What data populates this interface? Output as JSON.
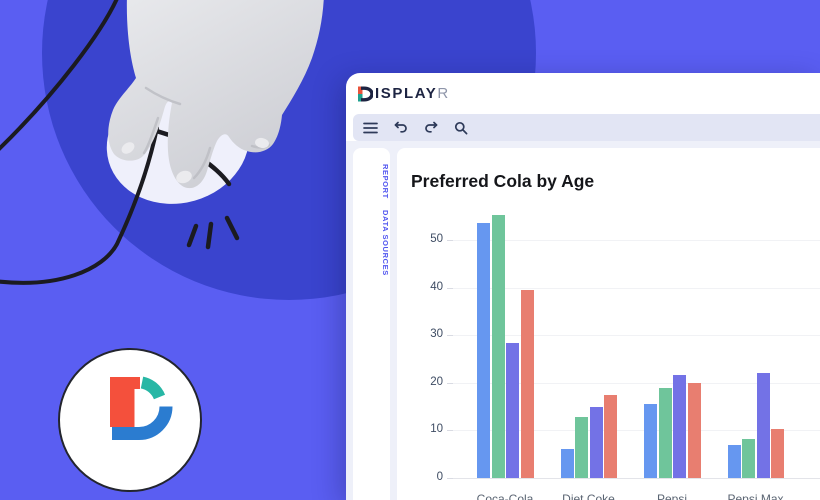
{
  "page": {
    "background": "#5A5EF2"
  },
  "illustration": {
    "blob_color": "#3A44CE",
    "mouse_color": "#EFF0FB",
    "hand_color": "#D8D9DD",
    "hand_shadow": "#BDBEC4",
    "cord_color": "#1B1B20",
    "badge": {
      "bg": "#FFFFFF",
      "ring": "#23252E",
      "d_red": "#F4503C",
      "d_teal": "#27B7A5",
      "d_blue": "#2B7CD0"
    }
  },
  "app": {
    "brand": {
      "word_main": "ISPLAY",
      "word_last": "R",
      "color_main": "#1D2442",
      "color_last": "#8E95A9",
      "mark_orange": "#E8533C",
      "mark_teal": "#1FA08F",
      "mark_navy": "#1D2442"
    },
    "toolbar": {
      "bg": "#E2E5F4",
      "icon_color": "#2E3A59",
      "icons": [
        "menu",
        "undo",
        "redo",
        "search"
      ]
    },
    "nav": {
      "color": "#5156EF",
      "items": [
        {
          "label": "REPORT",
          "active": true
        },
        {
          "label": "DATA SOURCES",
          "active": false
        }
      ]
    }
  },
  "chart_data": {
    "type": "bar",
    "title": "Preferred Cola by Age",
    "categories": [
      "Coca-Cola",
      "Diet Coke",
      "Pepsi",
      "Pepsi Max"
    ],
    "categories_clipped_at_bottom": true,
    "series": [
      {
        "name": "series-blue",
        "color": "#6697F0",
        "values": [
          53.5,
          6.1,
          15.6,
          6.9
        ]
      },
      {
        "name": "series-green",
        "color": "#6FC59B",
        "values": [
          55.2,
          12.8,
          18.9,
          8.3
        ]
      },
      {
        "name": "series-purple",
        "color": "#7372E6",
        "values": [
          28.3,
          15.0,
          21.6,
          22.1
        ]
      },
      {
        "name": "series-red",
        "color": "#E87E70",
        "values": [
          39.4,
          17.5,
          19.9,
          10.3
        ]
      }
    ],
    "y_ticks": [
      0,
      10,
      20,
      30,
      40,
      50
    ],
    "ylim": [
      0,
      57
    ],
    "grid": true,
    "legend_visible": false
  }
}
